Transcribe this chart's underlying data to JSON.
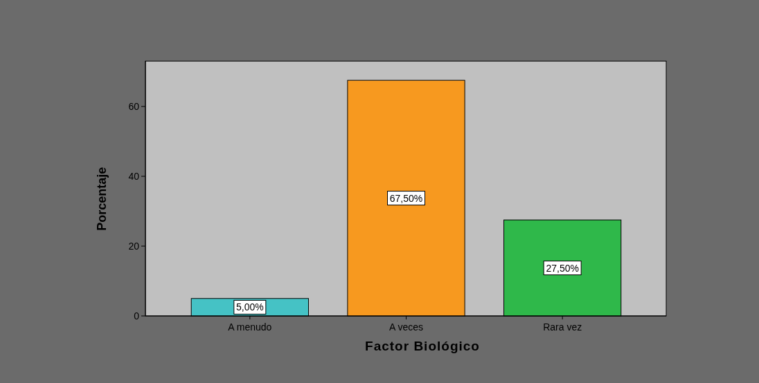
{
  "chart_data": {
    "type": "bar",
    "xlabel": "Factor Biológico",
    "ylabel": "Porcentaje",
    "categories": [
      "A menudo",
      "A veces",
      "Rara vez"
    ],
    "values": [
      5,
      67.5,
      27.5
    ],
    "colors": [
      "#45c2c5",
      "#f7991f",
      "#2fb84a"
    ],
    "value_labels": [
      "5,00%",
      "67,50%",
      "27,50%"
    ],
    "ylim": [
      0,
      73
    ],
    "yticks": [
      0,
      20,
      40,
      60
    ],
    "grid": false
  }
}
